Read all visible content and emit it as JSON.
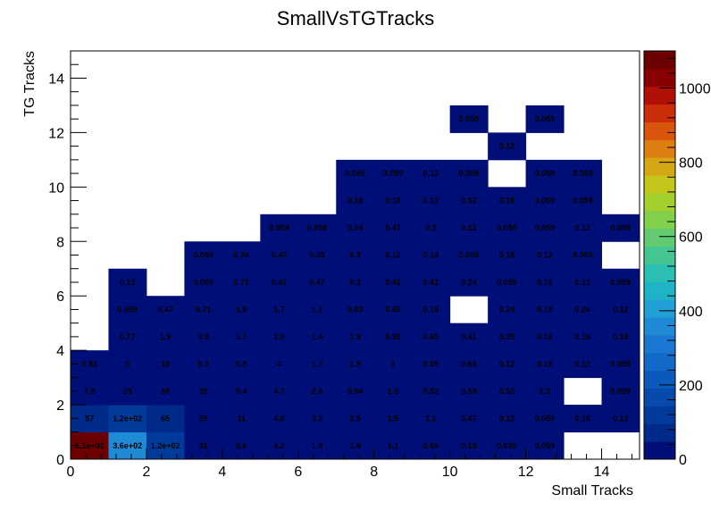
{
  "chart_data": {
    "type": "heatmap",
    "title": "SmallVsTGTracks",
    "xlabel": "Small Tracks",
    "ylabel": "TG Tracks",
    "xlim": [
      0,
      15
    ],
    "ylim": [
      0,
      15
    ],
    "x_ticks": [
      "0",
      "2",
      "4",
      "6",
      "8",
      "10",
      "12",
      "14"
    ],
    "y_ticks": [
      "0",
      "2",
      "4",
      "6",
      "8",
      "10",
      "12",
      "14"
    ],
    "z_min": 0,
    "z_max": 1100,
    "colorbar_ticks": [
      "0",
      "200",
      "400",
      "600",
      "800",
      "1000"
    ],
    "colorbar_tick_values": [
      0,
      200,
      400,
      600,
      800,
      1000
    ],
    "colorbar_colors": [
      "#000f78",
      "#002a8a",
      "#003b9b",
      "#064aac",
      "#0b59bb",
      "#1369c8",
      "#1b78d2",
      "#1f8bd6",
      "#20a0d4",
      "#1fb3c8",
      "#2bbfb3",
      "#45c591",
      "#62ca70",
      "#82cf4c",
      "#a4d02d",
      "#c5c61c",
      "#d6a715",
      "#dd7f10",
      "#d9540c",
      "#cb2e0a",
      "#b01006",
      "#8a0000",
      "#6c0000"
    ],
    "cells": [
      {
        "x": 0,
        "y": 0,
        "label": "1.1e+03",
        "value": 1100
      },
      {
        "x": 1,
        "y": 0,
        "label": "3.6e+02",
        "value": 360
      },
      {
        "x": 2,
        "y": 0,
        "label": "1.2e+02",
        "value": 120
      },
      {
        "x": 3,
        "y": 0,
        "label": "31",
        "value": 31
      },
      {
        "x": 4,
        "y": 0,
        "label": "8.6",
        "value": 8.6
      },
      {
        "x": 5,
        "y": 0,
        "label": "4.2",
        "value": 4.2
      },
      {
        "x": 6,
        "y": 0,
        "label": "1.8",
        "value": 1.8
      },
      {
        "x": 7,
        "y": 0,
        "label": "1.9",
        "value": 1.9
      },
      {
        "x": 8,
        "y": 0,
        "label": "1.1",
        "value": 1.1
      },
      {
        "x": 9,
        "y": 0,
        "label": "0.65",
        "value": 0.65
      },
      {
        "x": 10,
        "y": 0,
        "label": "0.18",
        "value": 0.18
      },
      {
        "x": 11,
        "y": 0,
        "label": "0.059",
        "value": 0.059
      },
      {
        "x": 12,
        "y": 0,
        "label": "0.059",
        "value": 0.059
      },
      {
        "x": 0,
        "y": 1,
        "label": "57",
        "value": 57
      },
      {
        "x": 1,
        "y": 1,
        "label": "1.2e+02",
        "value": 120
      },
      {
        "x": 2,
        "y": 1,
        "label": "65",
        "value": 65
      },
      {
        "x": 3,
        "y": 1,
        "label": "25",
        "value": 25
      },
      {
        "x": 4,
        "y": 1,
        "label": "11",
        "value": 11
      },
      {
        "x": 5,
        "y": 1,
        "label": "4.8",
        "value": 4.8
      },
      {
        "x": 6,
        "y": 1,
        "label": "3.2",
        "value": 3.2
      },
      {
        "x": 7,
        "y": 1,
        "label": "2.5",
        "value": 2.5
      },
      {
        "x": 8,
        "y": 1,
        "label": "1.5",
        "value": 1.5
      },
      {
        "x": 9,
        "y": 1,
        "label": "1.2",
        "value": 1.2
      },
      {
        "x": 10,
        "y": 1,
        "label": "0.47",
        "value": 0.47
      },
      {
        "x": 11,
        "y": 1,
        "label": "0.12",
        "value": 0.12
      },
      {
        "x": 12,
        "y": 1,
        "label": "0.059",
        "value": 0.059
      },
      {
        "x": 13,
        "y": 1,
        "label": "0.18",
        "value": 0.18
      },
      {
        "x": 14,
        "y": 1,
        "label": "0.12",
        "value": 0.12
      },
      {
        "x": 0,
        "y": 2,
        "label": "7.8",
        "value": 7.8
      },
      {
        "x": 1,
        "y": 2,
        "label": "25",
        "value": 25
      },
      {
        "x": 2,
        "y": 2,
        "label": "30",
        "value": 30
      },
      {
        "x": 3,
        "y": 2,
        "label": "20",
        "value": 20
      },
      {
        "x": 4,
        "y": 2,
        "label": "9.4",
        "value": 9.4
      },
      {
        "x": 5,
        "y": 2,
        "label": "4.7",
        "value": 4.7
      },
      {
        "x": 6,
        "y": 2,
        "label": "2.8",
        "value": 2.8
      },
      {
        "x": 7,
        "y": 2,
        "label": "0.94",
        "value": 0.94
      },
      {
        "x": 8,
        "y": 2,
        "label": "1.2",
        "value": 1.2
      },
      {
        "x": 9,
        "y": 2,
        "label": "0.53",
        "value": 0.53
      },
      {
        "x": 10,
        "y": 2,
        "label": "0.59",
        "value": 0.59
      },
      {
        "x": 11,
        "y": 2,
        "label": "0.53",
        "value": 0.53
      },
      {
        "x": 12,
        "y": 2,
        "label": "0.3",
        "value": 0.3
      },
      {
        "x": 14,
        "y": 2,
        "label": "0.059",
        "value": 0.059
      },
      {
        "x": 0,
        "y": 3,
        "label": "0.83",
        "value": 0.83
      },
      {
        "x": 1,
        "y": 3,
        "label": "5",
        "value": 5
      },
      {
        "x": 2,
        "y": 3,
        "label": "10",
        "value": 10
      },
      {
        "x": 3,
        "y": 3,
        "label": "8.2",
        "value": 8.2
      },
      {
        "x": 4,
        "y": 3,
        "label": "5.5",
        "value": 5.5
      },
      {
        "x": 5,
        "y": 3,
        "label": "4",
        "value": 4
      },
      {
        "x": 6,
        "y": 3,
        "label": "1.7",
        "value": 1.7
      },
      {
        "x": 7,
        "y": 3,
        "label": "1.9",
        "value": 1.9
      },
      {
        "x": 8,
        "y": 3,
        "label": "1",
        "value": 1
      },
      {
        "x": 9,
        "y": 3,
        "label": "0.59",
        "value": 0.59
      },
      {
        "x": 10,
        "y": 3,
        "label": "0.65",
        "value": 0.65
      },
      {
        "x": 11,
        "y": 3,
        "label": "0.12",
        "value": 0.12
      },
      {
        "x": 12,
        "y": 3,
        "label": "0.18",
        "value": 0.18
      },
      {
        "x": 13,
        "y": 3,
        "label": "0.12",
        "value": 0.12
      },
      {
        "x": 14,
        "y": 3,
        "label": "0.059",
        "value": 0.059
      },
      {
        "x": 1,
        "y": 4,
        "label": "0.77",
        "value": 0.77
      },
      {
        "x": 2,
        "y": 4,
        "label": "1.9",
        "value": 1.9
      },
      {
        "x": 3,
        "y": 4,
        "label": "3.9",
        "value": 3.9
      },
      {
        "x": 4,
        "y": 4,
        "label": "3.7",
        "value": 3.7
      },
      {
        "x": 5,
        "y": 4,
        "label": "2.9",
        "value": 2.9
      },
      {
        "x": 6,
        "y": 4,
        "label": "1.4",
        "value": 1.4
      },
      {
        "x": 7,
        "y": 4,
        "label": "1.9",
        "value": 1.9
      },
      {
        "x": 8,
        "y": 4,
        "label": "0.59",
        "value": 0.59
      },
      {
        "x": 9,
        "y": 4,
        "label": "0.65",
        "value": 0.65
      },
      {
        "x": 10,
        "y": 4,
        "label": "0.41",
        "value": 0.41
      },
      {
        "x": 11,
        "y": 4,
        "label": "0.35",
        "value": 0.35
      },
      {
        "x": 12,
        "y": 4,
        "label": "0.18",
        "value": 0.18
      },
      {
        "x": 13,
        "y": 4,
        "label": "0.18",
        "value": 0.18
      },
      {
        "x": 14,
        "y": 4,
        "label": "0.18",
        "value": 0.18
      },
      {
        "x": 1,
        "y": 5,
        "label": "0.059",
        "value": 0.059
      },
      {
        "x": 2,
        "y": 5,
        "label": "0.47",
        "value": 0.47
      },
      {
        "x": 3,
        "y": 5,
        "label": "0.71",
        "value": 0.71
      },
      {
        "x": 4,
        "y": 5,
        "label": "1.9",
        "value": 1.9
      },
      {
        "x": 5,
        "y": 5,
        "label": "1.7",
        "value": 1.7
      },
      {
        "x": 6,
        "y": 5,
        "label": "1.1",
        "value": 1.1
      },
      {
        "x": 7,
        "y": 5,
        "label": "0.83",
        "value": 0.83
      },
      {
        "x": 8,
        "y": 5,
        "label": "0.65",
        "value": 0.65
      },
      {
        "x": 9,
        "y": 5,
        "label": "0.18",
        "value": 0.18
      },
      {
        "x": 11,
        "y": 5,
        "label": "0.24",
        "value": 0.24
      },
      {
        "x": 12,
        "y": 5,
        "label": "0.18",
        "value": 0.18
      },
      {
        "x": 13,
        "y": 5,
        "label": "0.24",
        "value": 0.24
      },
      {
        "x": 14,
        "y": 5,
        "label": "0.12",
        "value": 0.12
      },
      {
        "x": 1,
        "y": 6,
        "label": "0.12",
        "value": 0.12
      },
      {
        "x": 3,
        "y": 6,
        "label": "0.059",
        "value": 0.059
      },
      {
        "x": 4,
        "y": 6,
        "label": "0.71",
        "value": 0.71
      },
      {
        "x": 5,
        "y": 6,
        "label": "0.41",
        "value": 0.41
      },
      {
        "x": 6,
        "y": 6,
        "label": "0.47",
        "value": 0.47
      },
      {
        "x": 7,
        "y": 6,
        "label": "0.3",
        "value": 0.3
      },
      {
        "x": 8,
        "y": 6,
        "label": "0.41",
        "value": 0.41
      },
      {
        "x": 9,
        "y": 6,
        "label": "0.41",
        "value": 0.41
      },
      {
        "x": 10,
        "y": 6,
        "label": "0.24",
        "value": 0.24
      },
      {
        "x": 11,
        "y": 6,
        "label": "0.059",
        "value": 0.059
      },
      {
        "x": 12,
        "y": 6,
        "label": "0.18",
        "value": 0.18
      },
      {
        "x": 13,
        "y": 6,
        "label": "0.12",
        "value": 0.12
      },
      {
        "x": 14,
        "y": 6,
        "label": "0.059",
        "value": 0.059
      },
      {
        "x": 3,
        "y": 7,
        "label": "0.059",
        "value": 0.059
      },
      {
        "x": 4,
        "y": 7,
        "label": "0.24",
        "value": 0.24
      },
      {
        "x": 5,
        "y": 7,
        "label": "0.47",
        "value": 0.47
      },
      {
        "x": 6,
        "y": 7,
        "label": "0.35",
        "value": 0.35
      },
      {
        "x": 7,
        "y": 7,
        "label": "0.3",
        "value": 0.3
      },
      {
        "x": 8,
        "y": 7,
        "label": "0.12",
        "value": 0.12
      },
      {
        "x": 9,
        "y": 7,
        "label": "0.18",
        "value": 0.18
      },
      {
        "x": 10,
        "y": 7,
        "label": "0.059",
        "value": 0.059
      },
      {
        "x": 11,
        "y": 7,
        "label": "0.18",
        "value": 0.18
      },
      {
        "x": 12,
        "y": 7,
        "label": "0.12",
        "value": 0.12
      },
      {
        "x": 13,
        "y": 7,
        "label": "0.059",
        "value": 0.059
      },
      {
        "x": 5,
        "y": 8,
        "label": "0.059",
        "value": 0.059
      },
      {
        "x": 6,
        "y": 8,
        "label": "0.059",
        "value": 0.059
      },
      {
        "x": 7,
        "y": 8,
        "label": "0.24",
        "value": 0.24
      },
      {
        "x": 8,
        "y": 8,
        "label": "0.47",
        "value": 0.47
      },
      {
        "x": 9,
        "y": 8,
        "label": "0.3",
        "value": 0.3
      },
      {
        "x": 10,
        "y": 8,
        "label": "0.12",
        "value": 0.12
      },
      {
        "x": 11,
        "y": 8,
        "label": "0.059",
        "value": 0.059
      },
      {
        "x": 12,
        "y": 8,
        "label": "0.059",
        "value": 0.059
      },
      {
        "x": 13,
        "y": 8,
        "label": "0.12",
        "value": 0.12
      },
      {
        "x": 14,
        "y": 8,
        "label": "0.059",
        "value": 0.059
      },
      {
        "x": 7,
        "y": 9,
        "label": "0.18",
        "value": 0.18
      },
      {
        "x": 8,
        "y": 9,
        "label": "0.18",
        "value": 0.18
      },
      {
        "x": 9,
        "y": 9,
        "label": "0.12",
        "value": 0.12
      },
      {
        "x": 10,
        "y": 9,
        "label": "0.12",
        "value": 0.12
      },
      {
        "x": 11,
        "y": 9,
        "label": "0.18",
        "value": 0.18
      },
      {
        "x": 12,
        "y": 9,
        "label": "0.059",
        "value": 0.059
      },
      {
        "x": 13,
        "y": 9,
        "label": "0.059",
        "value": 0.059
      },
      {
        "x": 7,
        "y": 10,
        "label": "0.059",
        "value": 0.059
      },
      {
        "x": 8,
        "y": 10,
        "label": "0.059",
        "value": 0.059
      },
      {
        "x": 9,
        "y": 10,
        "label": "0.12",
        "value": 0.12
      },
      {
        "x": 10,
        "y": 10,
        "label": "0.059",
        "value": 0.059
      },
      {
        "x": 12,
        "y": 10,
        "label": "0.059",
        "value": 0.059
      },
      {
        "x": 13,
        "y": 10,
        "label": "0.059",
        "value": 0.059
      },
      {
        "x": 11,
        "y": 11,
        "label": "0.12",
        "value": 0.12
      },
      {
        "x": 10,
        "y": 12,
        "label": "0.059",
        "value": 0.059
      },
      {
        "x": 12,
        "y": 12,
        "label": "0.059",
        "value": 0.059
      }
    ]
  }
}
